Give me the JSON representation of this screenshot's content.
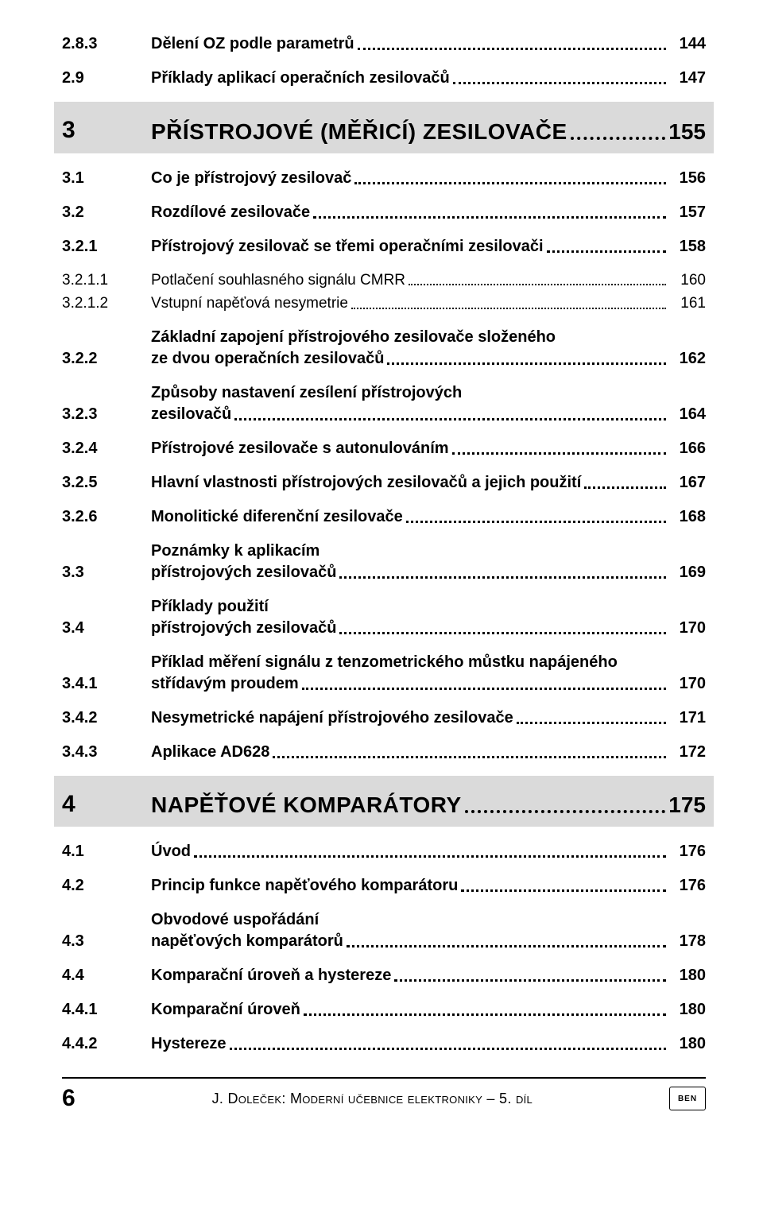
{
  "entries": [
    {
      "num": "2.8.3",
      "title": "Dělení OZ podle parametrů",
      "page": "144",
      "level": "h2"
    },
    {
      "num": "2.9",
      "title": "Příklady aplikací operačních zesilovačů",
      "page": "147",
      "level": "h2"
    },
    {
      "num": "3",
      "title": "PŘÍSTROJOVÉ (MĚŘICÍ) ZESILOVAČE",
      "page": "155",
      "level": "chapter"
    },
    {
      "num": "3.1",
      "title": "Co je přístrojový zesilovač",
      "page": "156",
      "level": "h2"
    },
    {
      "num": "3.2",
      "title": "Rozdílové zesilovače",
      "page": "157",
      "level": "h2"
    },
    {
      "num": "3.2.1",
      "title": "Přístrojový zesilovač se třemi operačními zesilovači",
      "page": "158",
      "level": "h2"
    },
    {
      "num": "3.2.1.1",
      "title": "Potlačení souhlasného signálu CMRR",
      "page": "160",
      "level": "h3",
      "tight": true
    },
    {
      "num": "3.2.1.2",
      "title": "Vstupní napěťová nesymetrie",
      "page": "161",
      "level": "h3"
    },
    {
      "num": "3.2.2",
      "title_lines": [
        "Základní zapojení přístrojového zesilovače složeného",
        "ze dvou operačních zesilovačů"
      ],
      "page": "162",
      "level": "h2"
    },
    {
      "num": "3.2.3",
      "title_lines": [
        "Způsoby nastavení zesílení přístrojových",
        "zesilovačů"
      ],
      "page": "164",
      "level": "h2"
    },
    {
      "num": "3.2.4",
      "title": "Přístrojové zesilovače s autonulováním",
      "page": "166",
      "level": "h2"
    },
    {
      "num": "3.2.5",
      "title": "Hlavní vlastnosti přístrojových zesilovačů a jejich použití",
      "page": "167",
      "level": "h2"
    },
    {
      "num": "3.2.6",
      "title": "Monolitické diferenční zesilovače",
      "page": "168",
      "level": "h2"
    },
    {
      "num": "3.3",
      "title_lines": [
        "Poznámky k aplikacím",
        "přístrojových zesilovačů"
      ],
      "page": "169",
      "level": "h2"
    },
    {
      "num": "3.4",
      "title_lines": [
        "Příklady použití",
        "přístrojových zesilovačů"
      ],
      "page": "170",
      "level": "h2"
    },
    {
      "num": "3.4.1",
      "title_lines": [
        "Příklad měření signálu z tenzometrického můstku napájeného",
        "střídavým proudem"
      ],
      "page": "170",
      "level": "h2"
    },
    {
      "num": "3.4.2",
      "title": "Nesymetrické napájení přístrojového zesilovače",
      "page": "171",
      "level": "h2"
    },
    {
      "num": "3.4.3",
      "title": "Aplikace AD628",
      "page": "172",
      "level": "h2"
    },
    {
      "num": "4",
      "title": "NAPĚŤOVÉ KOMPARÁTORY",
      "page": "175",
      "level": "chapter"
    },
    {
      "num": "4.1",
      "title": "Úvod",
      "page": "176",
      "level": "h2"
    },
    {
      "num": "4.2",
      "title": "Princip funkce napěťového komparátoru",
      "page": "176",
      "level": "h2"
    },
    {
      "num": "4.3",
      "title_lines": [
        "Obvodové uspořádání",
        "napěťových komparátorů"
      ],
      "page": "178",
      "level": "h2"
    },
    {
      "num": "4.4",
      "title": "Komparační úroveň a hystereze",
      "page": "180",
      "level": "h2"
    },
    {
      "num": "4.4.1",
      "title": "Komparační úroveň",
      "page": "180",
      "level": "h2"
    },
    {
      "num": "4.4.2",
      "title": "Hystereze",
      "page": "180",
      "level": "h2"
    }
  ],
  "footer": {
    "page_number": "6",
    "book_title": "J. Doleček: Moderní učebnice elektroniky – 5. díl",
    "publisher": "BEN"
  }
}
